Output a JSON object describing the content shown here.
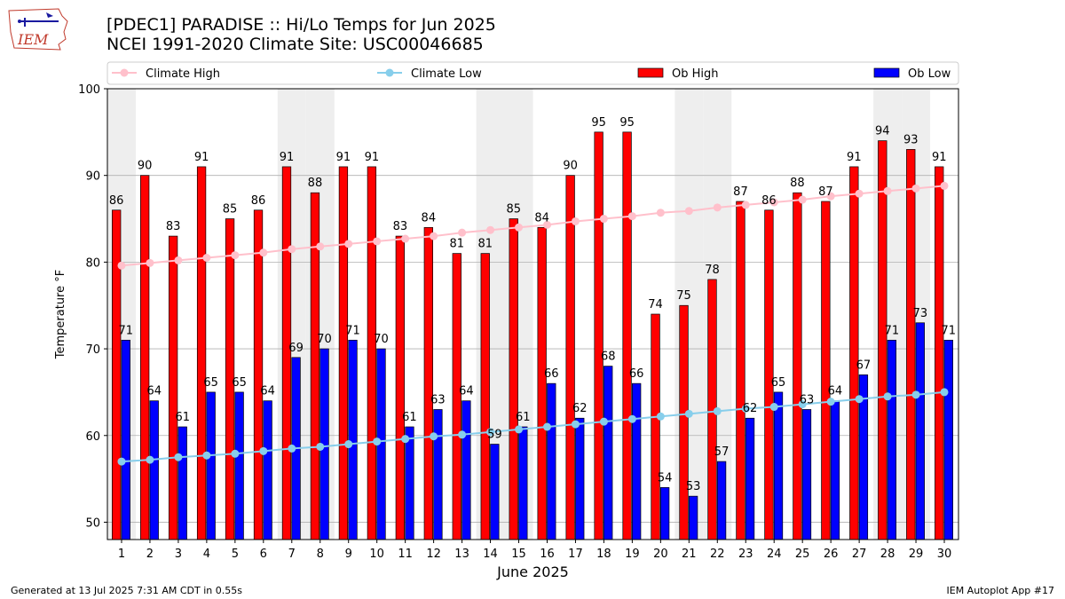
{
  "header": {
    "title_line1": "[PDEC1] PARADISE :: Hi/Lo Temps for Jun 2025",
    "title_line2": "NCEI 1991-2020 Climate Site: USC00046685"
  },
  "logo": {
    "text": "IEM"
  },
  "footer": {
    "generated": "Generated at 13 Jul 2025 7:31 AM CDT in 0.55s",
    "app": "IEM Autoplot App #17"
  },
  "chart_data": {
    "type": "bar",
    "xlabel": "June 2025",
    "ylabel": "Temperature °F",
    "ylim": [
      48,
      100
    ],
    "yticks": [
      50,
      60,
      70,
      80,
      90,
      100
    ],
    "categories": [
      "1",
      "2",
      "3",
      "4",
      "5",
      "6",
      "7",
      "8",
      "9",
      "10",
      "11",
      "12",
      "13",
      "14",
      "15",
      "16",
      "17",
      "18",
      "19",
      "20",
      "21",
      "22",
      "23",
      "24",
      "25",
      "26",
      "27",
      "28",
      "29",
      "30"
    ],
    "weekend_days": [
      1,
      7,
      8,
      14,
      15,
      21,
      22,
      28,
      29
    ],
    "legend": [
      "Climate High",
      "Climate Low",
      "Ob High",
      "Ob Low"
    ],
    "colors": {
      "ob_high": "#ff0000",
      "ob_low": "#0000ff",
      "climate_high": "#ffc0cb",
      "climate_low": "#87ceeb",
      "weekend_band": "#eeeeee",
      "grid": "#b0b0b0"
    },
    "series": [
      {
        "name": "Ob High",
        "values": [
          86,
          90,
          83,
          91,
          85,
          86,
          91,
          88,
          91,
          91,
          83,
          84,
          81,
          81,
          85,
          84,
          90,
          95,
          95,
          74,
          75,
          78,
          87,
          86,
          88,
          87,
          91,
          94,
          93,
          91
        ]
      },
      {
        "name": "Ob Low",
        "values": [
          71,
          64,
          61,
          65,
          65,
          64,
          69,
          70,
          71,
          70,
          61,
          63,
          64,
          59,
          61,
          66,
          62,
          68,
          66,
          54,
          53,
          57,
          62,
          65,
          63,
          64,
          67,
          71,
          73,
          71
        ]
      },
      {
        "name": "Climate High",
        "values": [
          79.6,
          79.9,
          80.2,
          80.5,
          80.8,
          81.1,
          81.5,
          81.8,
          82.1,
          82.4,
          82.7,
          83.0,
          83.4,
          83.7,
          84.0,
          84.3,
          84.7,
          85.0,
          85.3,
          85.7,
          85.9,
          86.3,
          86.6,
          86.9,
          87.2,
          87.6,
          87.9,
          88.2,
          88.5,
          88.8
        ]
      },
      {
        "name": "Climate Low",
        "values": [
          57.0,
          57.2,
          57.5,
          57.7,
          57.9,
          58.2,
          58.5,
          58.7,
          59.0,
          59.3,
          59.6,
          59.9,
          60.1,
          60.4,
          60.7,
          61.0,
          61.3,
          61.6,
          61.9,
          62.2,
          62.5,
          62.8,
          63.1,
          63.3,
          63.6,
          63.9,
          64.2,
          64.5,
          64.7,
          65.0
        ]
      }
    ]
  }
}
